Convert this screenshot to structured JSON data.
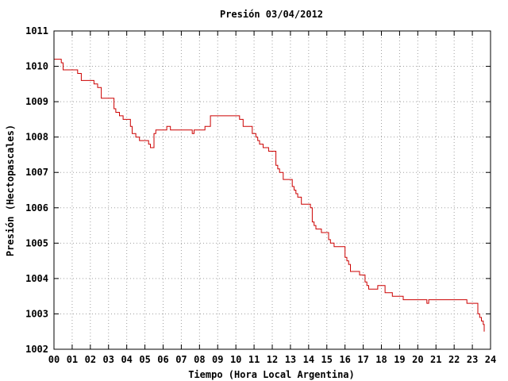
{
  "chart_data": {
    "type": "line",
    "title": "Presión 03/04/2012",
    "xlabel": "Tiempo (Hora Local Argentina)",
    "ylabel": "Presión (Hectopascales)",
    "xlim": [
      0,
      24
    ],
    "ylim": [
      1002,
      1011
    ],
    "x_ticks": [
      0,
      1,
      2,
      3,
      4,
      5,
      6,
      7,
      8,
      9,
      10,
      11,
      12,
      13,
      14,
      15,
      16,
      17,
      18,
      19,
      20,
      21,
      22,
      23,
      24
    ],
    "x_tick_labels": [
      "00",
      "01",
      "02",
      "03",
      "04",
      "05",
      "06",
      "07",
      "08",
      "09",
      "10",
      "11",
      "12",
      "13",
      "14",
      "15",
      "16",
      "17",
      "18",
      "19",
      "20",
      "21",
      "22",
      "23",
      "24"
    ],
    "y_ticks": [
      1002,
      1003,
      1004,
      1005,
      1006,
      1007,
      1008,
      1009,
      1010,
      1011
    ],
    "y_tick_labels": [
      "1002",
      "1003",
      "1004",
      "1005",
      "1006",
      "1007",
      "1008",
      "1009",
      "1010",
      "1011"
    ],
    "grid": true,
    "series": [
      {
        "color": "#cc0000",
        "step": true,
        "x": [
          0.0,
          0.4,
          0.5,
          1.3,
          1.5,
          2.2,
          2.4,
          2.6,
          3.3,
          3.4,
          3.6,
          3.8,
          4.2,
          4.3,
          4.5,
          4.6,
          4.7,
          5.2,
          5.3,
          5.5,
          5.6,
          6.1,
          6.2,
          6.4,
          7.6,
          7.7,
          8.2,
          8.3,
          8.6,
          9.0,
          9.5,
          10.2,
          10.4,
          10.6,
          10.9,
          11.1,
          11.2,
          11.3,
          11.5,
          11.8,
          12.2,
          12.3,
          12.4,
          12.6,
          12.7,
          13.1,
          13.2,
          13.3,
          13.4,
          13.6,
          14.1,
          14.2,
          14.3,
          14.4,
          14.7,
          15.1,
          15.2,
          15.4,
          15.6,
          16.0,
          16.1,
          16.2,
          16.3,
          16.6,
          16.8,
          17.1,
          17.2,
          17.3,
          17.5,
          17.8,
          18.2,
          18.4,
          18.6,
          19.0,
          19.2,
          19.5,
          20.0,
          20.5,
          20.6,
          20.8,
          21.5,
          22.0,
          22.5,
          22.7,
          23.0,
          23.3,
          23.4,
          23.5,
          23.6,
          23.65
        ],
        "y": [
          1010.2,
          1010.1,
          1009.9,
          1009.8,
          1009.6,
          1009.5,
          1009.4,
          1009.1,
          1008.8,
          1008.7,
          1008.6,
          1008.5,
          1008.3,
          1008.1,
          1008.0,
          1008.0,
          1007.9,
          1007.8,
          1007.7,
          1008.1,
          1008.2,
          1008.2,
          1008.3,
          1008.2,
          1008.1,
          1008.2,
          1008.2,
          1008.3,
          1008.6,
          1008.6,
          1008.6,
          1008.5,
          1008.3,
          1008.3,
          1008.1,
          1008.0,
          1007.9,
          1007.8,
          1007.7,
          1007.6,
          1007.2,
          1007.1,
          1007.0,
          1006.8,
          1006.8,
          1006.6,
          1006.5,
          1006.4,
          1006.3,
          1006.1,
          1006.0,
          1005.6,
          1005.5,
          1005.4,
          1005.3,
          1005.1,
          1005.0,
          1004.9,
          1004.9,
          1004.6,
          1004.5,
          1004.4,
          1004.2,
          1004.2,
          1004.1,
          1003.9,
          1003.8,
          1003.7,
          1003.7,
          1003.8,
          1003.6,
          1003.6,
          1003.5,
          1003.5,
          1003.4,
          1003.4,
          1003.4,
          1003.3,
          1003.4,
          1003.4,
          1003.4,
          1003.4,
          1003.4,
          1003.3,
          1003.3,
          1003.0,
          1002.9,
          1002.8,
          1002.7,
          1002.5
        ]
      }
    ]
  }
}
